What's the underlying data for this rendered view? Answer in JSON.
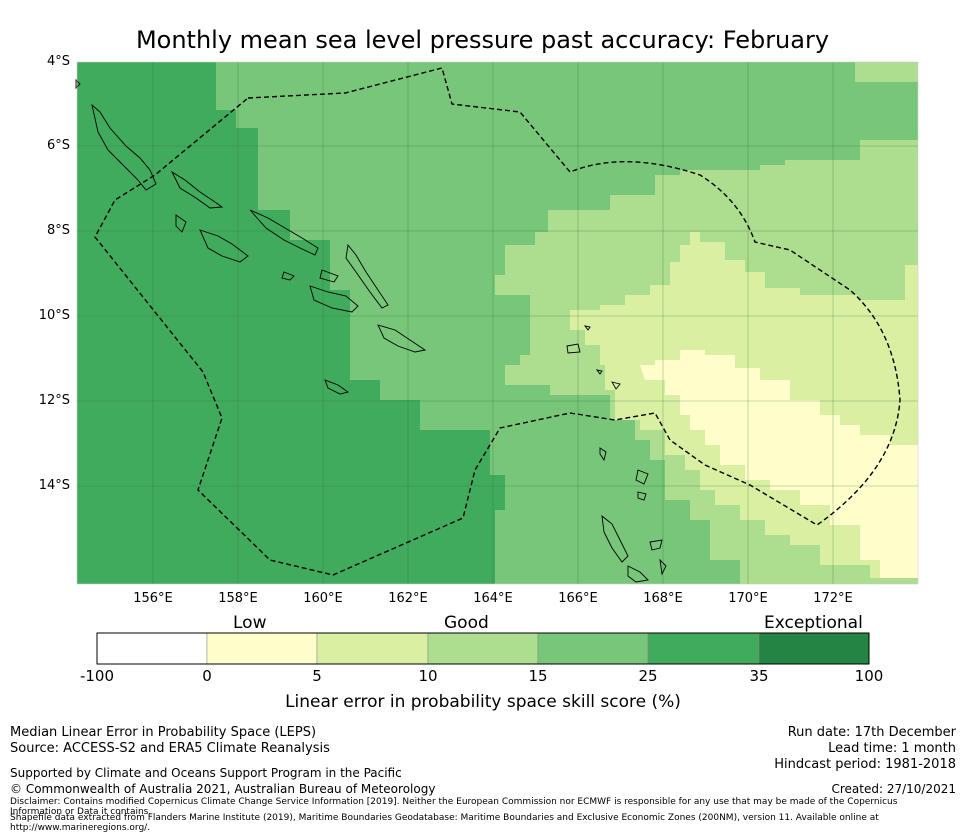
{
  "title": "Monthly mean sea level pressure past accuracy: February",
  "map": {
    "lat_labels": [
      "4°S",
      "6°S",
      "8°S",
      "10°S",
      "12°S",
      "14°S"
    ],
    "lon_labels": [
      "156°E",
      "158°E",
      "160°E",
      "162°E",
      "164°E",
      "166°E",
      "168°E",
      "170°E",
      "172°E"
    ],
    "lon_range": [
      154.2,
      174.0
    ],
    "lat_range": [
      -16.3,
      -4.0
    ],
    "eez_boundary": "Solomon Islands and Vanuatu EEZ (dashed)"
  },
  "legend": {
    "categories": [
      "Low",
      "Good",
      "Exceptional"
    ],
    "ticks": [
      "-100",
      "0",
      "5",
      "10",
      "15",
      "25",
      "35",
      "100"
    ],
    "colors": [
      "#ffffff",
      "#ffffcc",
      "#d9f0a3",
      "#addd8e",
      "#78c679",
      "#41ab5d",
      "#238443"
    ],
    "label": "Linear error in probability space skill score (%)"
  },
  "footer": {
    "line1": "Median Linear Error in Probability Space (LEPS)",
    "line2": "Source: ACCESS-S2 and ERA5 Climate Reanalysis",
    "support": "Supported by Climate and Oceans Support Program in the Pacific",
    "copyright": "© Commonwealth of Australia 2021, Australian Bureau of Meteorology",
    "disclaimer1": "Disclaimer: Contains modified Copernicus Climate Change Service Information [2019]. Neither the European Commission nor ECMWF is responsible for any use that may be made of the Copernicus",
    "disclaimer2": "Information or Data it contains.",
    "shapefile1": "Shapefile data extracted from Flanders Marine Institute (2019), Maritime Boundaries Geodatabase: Maritime Boundaries and Exclusive Economic Zones (200NM), version 11. Available online at",
    "shapefile2": "http://www.marineregions.org/.",
    "run_date": "Run date: 17th December",
    "lead_time": "Lead time: 1 month",
    "hindcast": "Hindcast period: 1981-2018",
    "created": "Created: 27/10/2021"
  }
}
